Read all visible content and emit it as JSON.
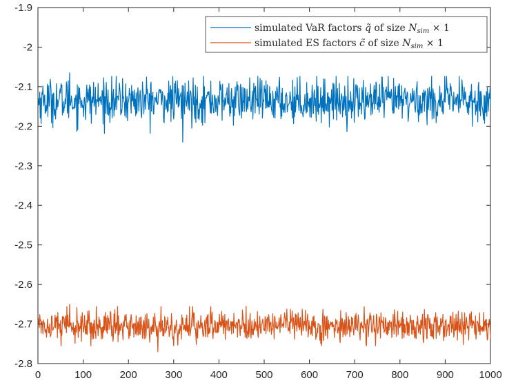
{
  "chart_data": {
    "type": "line",
    "xlim": [
      0,
      1000
    ],
    "ylim": [
      -2.8,
      -1.9
    ],
    "x_ticks": [
      "0",
      "100",
      "200",
      "300",
      "400",
      "500",
      "600",
      "700",
      "800",
      "900",
      "1000"
    ],
    "y_ticks": [
      "-1.9",
      "-2",
      "-2.1",
      "-2.2",
      "-2.3",
      "-2.4",
      "-2.5",
      "-2.6",
      "-2.7",
      "-2.8"
    ],
    "grid": false,
    "legend_placement": "top-right",
    "n_points": 1000,
    "series": [
      {
        "name": "simulated VaR factors q̃ of size N_sim × 1",
        "legend_parts": [
          "simulated VaR factors ",
          "q̃",
          " of size ",
          "N",
          "sim",
          " × 1"
        ],
        "color": "#0072BD",
        "mean": -2.135,
        "min": -2.24,
        "max": -2.065,
        "notable_points": [
          [
            320,
            -2.24
          ],
          [
            70,
            -2.065
          ],
          [
            960,
            -2.2
          ]
        ]
      },
      {
        "name": "simulated ES factors c̃ of size N_sim × 1",
        "legend_parts": [
          "simulated ES factors ",
          "c̃",
          " of size ",
          "N",
          "sim",
          " × 1"
        ],
        "color": "#D95319",
        "mean": -2.705,
        "min": -2.77,
        "max": -2.65,
        "notable_points": [
          [
            265,
            -2.77
          ],
          [
            70,
            -2.65
          ],
          [
            460,
            -2.655
          ]
        ]
      }
    ]
  }
}
